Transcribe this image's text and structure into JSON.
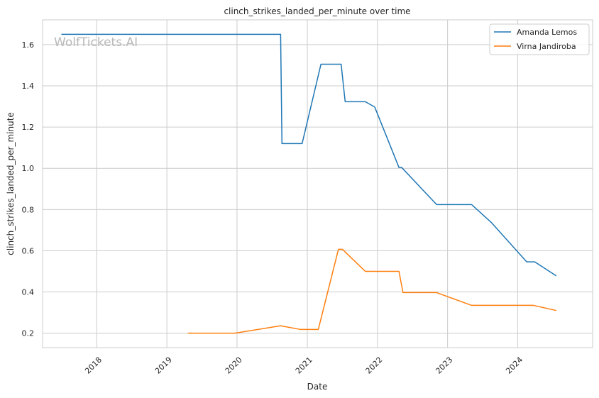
{
  "chart_data": {
    "type": "line",
    "title": "clinch_strikes_landed_per_minute over time",
    "xlabel": "Date",
    "ylabel": "clinch_strikes_landed_per_minute",
    "watermark": "WolfTickets.AI",
    "xlim": [
      "2017-03-25",
      "2025-01-25"
    ],
    "ylim": [
      0.13,
      1.72
    ],
    "x_ticks": [
      "2018",
      "2019",
      "2020",
      "2021",
      "2022",
      "2023",
      "2024"
    ],
    "y_ticks": [
      "0.2",
      "0.4",
      "0.6",
      "0.8",
      "1.0",
      "1.2",
      "1.4",
      "1.6"
    ],
    "grid": true,
    "legend_position": "top-right",
    "series": [
      {
        "name": "Amanda Lemos",
        "color": "#1f77b4",
        "points": [
          [
            "2017-07-01",
            1.65
          ],
          [
            "2020-08-15",
            1.65
          ],
          [
            "2020-08-22",
            1.12
          ],
          [
            "2020-12-05",
            1.12
          ],
          [
            "2021-03-13",
            1.505
          ],
          [
            "2021-06-26",
            1.505
          ],
          [
            "2021-07-17",
            1.323
          ],
          [
            "2021-10-30",
            1.323
          ],
          [
            "2021-12-18",
            1.297
          ],
          [
            "2022-04-23",
            1.004
          ],
          [
            "2022-05-07",
            1.004
          ],
          [
            "2022-11-05",
            0.824
          ],
          [
            "2023-05-06",
            0.824
          ],
          [
            "2023-08-19",
            0.735
          ],
          [
            "2024-02-17",
            0.546
          ],
          [
            "2024-03-30",
            0.546
          ],
          [
            "2024-07-20",
            0.478
          ]
        ]
      },
      {
        "name": "Virna Jandiroba",
        "color": "#ff7f0e",
        "points": [
          [
            "2019-04-20",
            0.2
          ],
          [
            "2019-12-21",
            0.2
          ],
          [
            "2020-08-15",
            0.236
          ],
          [
            "2020-11-28",
            0.218
          ],
          [
            "2021-02-27",
            0.218
          ],
          [
            "2021-06-12",
            0.607
          ],
          [
            "2021-07-03",
            0.607
          ],
          [
            "2021-10-30",
            0.5
          ],
          [
            "2022-04-23",
            0.5
          ],
          [
            "2022-05-14",
            0.397
          ],
          [
            "2022-11-05",
            0.397
          ],
          [
            "2023-05-06",
            0.335
          ],
          [
            "2024-03-23",
            0.335
          ],
          [
            "2024-07-20",
            0.31
          ]
        ]
      }
    ]
  }
}
